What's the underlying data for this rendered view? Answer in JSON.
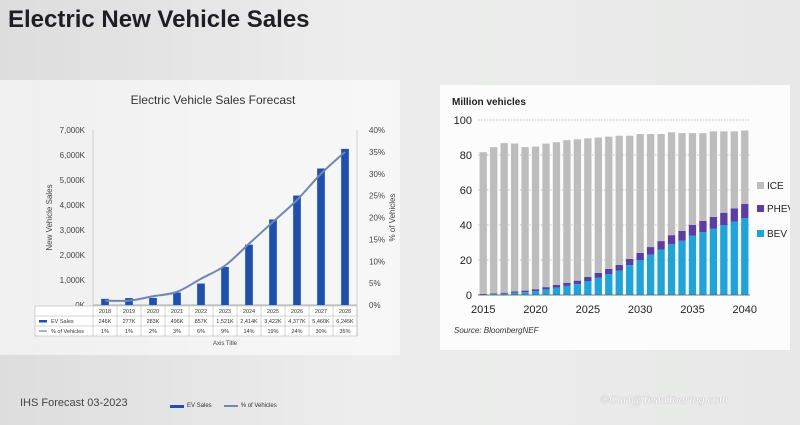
{
  "page": {
    "title": "Electric New Vehicle Sales",
    "footer": "IHS Forecast 03-2023",
    "watermark": "©Carl@TeslaTouring.com",
    "legend_bar_label": "EV Sales",
    "legend_line_label": "% of Vehicles"
  },
  "chart_data": [
    {
      "type": "bar",
      "title": "Electric Vehicle Sales Forecast",
      "xlabel": "Axis Title",
      "ylabel": "New Vehicle Sales",
      "y2label": "% of Vehicles",
      "categories": [
        "2018",
        "2019",
        "2020",
        "2021",
        "2022",
        "2023",
        "2024",
        "2025",
        "2026",
        "2027",
        "2028"
      ],
      "ylim": [
        0,
        7000000
      ],
      "y2lim": [
        0,
        40
      ],
      "yticks": [
        "0K",
        "1,000K",
        "2,000K",
        "3,000K",
        "4,000K",
        "5,000K",
        "6,000K",
        "7,000K"
      ],
      "y2ticks": [
        "0%",
        "5%",
        "10%",
        "15%",
        "20%",
        "25%",
        "30%",
        "35%",
        "40%"
      ],
      "series": [
        {
          "name": "EV Sales",
          "type": "bar",
          "color": "#1f4fb0",
          "axis": "left",
          "values": [
            246000,
            277000,
            283000,
            496000,
            857000,
            1521000,
            2414000,
            3422000,
            4377000,
            5460000,
            6245000
          ],
          "labels": [
            "246K",
            "277K",
            "283K",
            "496K",
            "857K",
            "1,521K",
            "2,414K",
            "3,422K",
            "4,377K",
            "5,460K",
            "6,245K"
          ]
        },
        {
          "name": "% of Vehicles",
          "type": "line",
          "color": "#6f86b8",
          "axis": "right",
          "values": [
            1,
            1,
            2,
            3,
            6,
            9,
            14,
            19,
            24,
            30,
            35
          ],
          "labels": [
            "1%",
            "1%",
            "2%",
            "3%",
            "6%",
            "9%",
            "14%",
            "19%",
            "24%",
            "30%",
            "35%"
          ]
        }
      ],
      "table_row_labels": [
        "EV Sales",
        "% of Vehicles"
      ],
      "grid": false,
      "legend": "bottom"
    },
    {
      "type": "bar",
      "stacked": true,
      "title": "Million vehicles",
      "source": "Source: BloombergNEF",
      "x": [
        2015,
        2016,
        2017,
        2018,
        2019,
        2020,
        2021,
        2022,
        2023,
        2024,
        2025,
        2026,
        2027,
        2028,
        2029,
        2030,
        2031,
        2032,
        2033,
        2034,
        2035,
        2036,
        2037,
        2038,
        2039,
        2040
      ],
      "xticks": [
        "2015",
        "2020",
        "2025",
        "2030",
        "2035",
        "2040"
      ],
      "ylim": [
        0,
        100
      ],
      "yticks": [
        "0",
        "20",
        "40",
        "60",
        "80",
        "100"
      ],
      "series": [
        {
          "name": "BEV",
          "color": "#1ea4dc",
          "values": [
            0.3,
            0.5,
            0.8,
            1.3,
            1.6,
            2.3,
            3.2,
            4.2,
            5.2,
            6.2,
            8,
            10,
            12,
            14,
            17,
            20,
            23,
            26,
            29,
            31,
            34,
            36,
            38,
            40,
            42,
            44
          ]
        },
        {
          "name": "PHEV",
          "color": "#5b3da5",
          "values": [
            0.3,
            0.4,
            0.5,
            0.8,
            0.9,
            1.0,
            1.3,
            1.6,
            1.8,
            2.0,
            2.3,
            2.6,
            2.9,
            3.2,
            3.6,
            4.0,
            4.4,
            4.8,
            5.2,
            5.6,
            6,
            6.3,
            6.6,
            7,
            7.5,
            8
          ]
        },
        {
          "name": "ICE",
          "color": "#bdbdbd",
          "values": [
            81,
            83.6,
            85.5,
            84.5,
            82,
            81.5,
            82,
            81.5,
            81.5,
            80.8,
            79.2,
            77.4,
            75.6,
            73.8,
            70.4,
            68,
            64.6,
            61.2,
            58.8,
            55.9,
            52.5,
            50.2,
            48.9,
            46.5,
            44,
            42
          ]
        }
      ],
      "legend": "right",
      "grid": true
    }
  ]
}
